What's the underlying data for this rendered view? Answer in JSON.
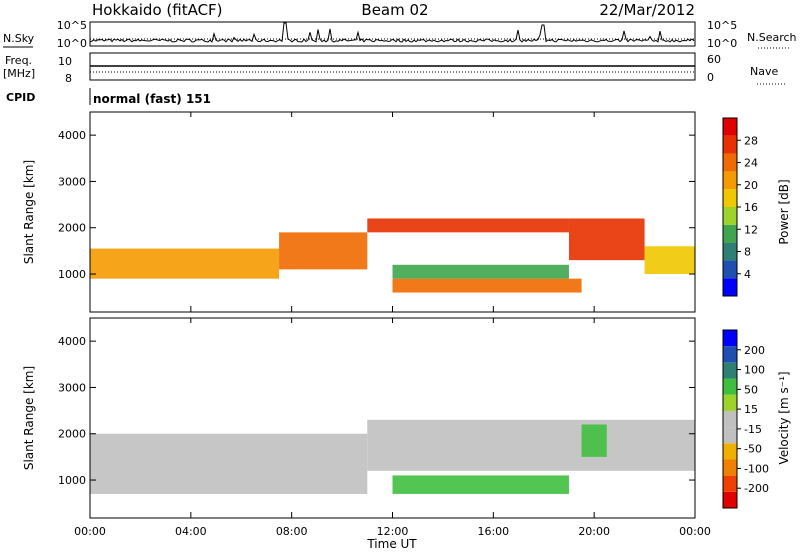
{
  "header": {
    "station": "Hokkaido (fitACF)",
    "beam": "Beam 02",
    "date": "22/Mar/2012"
  },
  "strips": {
    "nsky_label": "N.Sky",
    "nsky_ticks": [
      "10^5",
      "10^0"
    ],
    "nsearch_label": "N.Search",
    "nsearch_ticks": [
      "10^5",
      "10^0"
    ],
    "freq_label_1": "Freq.",
    "freq_label_2": "[MHz]",
    "freq_ticks": [
      "10",
      "8"
    ],
    "nave_label": "Nave",
    "nave_ticks": [
      "60",
      "0"
    ],
    "cpid_label": "CPID",
    "cpid_text": "normal (fast) 151"
  },
  "colors": {
    "power_scale": [
      "#0000ff",
      "#1f4fb0",
      "#2f7f73",
      "#3fa64f",
      "#9cd42a",
      "#f0c800",
      "#f59a00",
      "#f06a00",
      "#e83000",
      "#e00000"
    ],
    "velocity_scale": [
      "#0000ff",
      "#1f4fb0",
      "#2f7f73",
      "#3fbf3f",
      "#9cd42a",
      "#c0c0c0",
      "#c0c0c0",
      "#f0b000",
      "#f08000",
      "#f04000",
      "#e00000"
    ],
    "ground_scatter": "#c0c0c0"
  },
  "chart_data": [
    {
      "type": "heatmap",
      "name": "power",
      "ylabel": "Slant Range [km]",
      "ylim": [
        180,
        4500
      ],
      "yticks": [
        "1000",
        "2000",
        "3000",
        "4000"
      ],
      "colorbar_label": "Power [dB]",
      "colorbar_ticks": [
        "4",
        "8",
        "12",
        "16",
        "20",
        "24",
        "28"
      ],
      "bands": [
        {
          "t0": 0,
          "t1": 7.5,
          "r0": 900,
          "r1": 1550,
          "value_db": 18
        },
        {
          "t0": 7.5,
          "t1": 11,
          "r0": 1100,
          "r1": 1900,
          "value_db": 22
        },
        {
          "t0": 11,
          "t1": 19,
          "r0": 1900,
          "r1": 2200,
          "value_db": 24
        },
        {
          "t0": 12,
          "t1": 19.5,
          "r0": 600,
          "r1": 900,
          "value_db": 22
        },
        {
          "t0": 12,
          "t1": 19,
          "r0": 900,
          "r1": 1200,
          "value_db": 10
        },
        {
          "t0": 19,
          "t1": 22,
          "r0": 1300,
          "r1": 2200,
          "value_db": 24
        },
        {
          "t0": 22,
          "t1": 24,
          "r0": 1000,
          "r1": 1600,
          "value_db": 16
        }
      ]
    },
    {
      "type": "heatmap",
      "name": "velocity",
      "ylabel": "Slant Range [km]",
      "xlabel": "Time UT",
      "ylim": [
        180,
        4500
      ],
      "yticks": [
        "1000",
        "2000",
        "3000",
        "4000"
      ],
      "xticks": [
        "00:00",
        "04:00",
        "08:00",
        "12:00",
        "16:00",
        "20:00",
        "00:00"
      ],
      "colorbar_label": "Velocity [m s⁻¹]",
      "colorbar_ticks": [
        "200",
        "100",
        "50",
        "15",
        "-15",
        "-50",
        "-100",
        "-200"
      ],
      "bands": [
        {
          "t0": 0,
          "t1": 11,
          "r0": 700,
          "r1": 2000,
          "value": "ground scatter"
        },
        {
          "t0": 11,
          "t1": 24,
          "r0": 1200,
          "r1": 2300,
          "value": "ground scatter"
        },
        {
          "t0": 12,
          "t1": 19,
          "r0": 700,
          "r1": 1100,
          "value_ms": 30
        },
        {
          "t0": 19.5,
          "t1": 20.5,
          "r0": 1500,
          "r1": 2200,
          "value_ms": 40
        }
      ]
    }
  ]
}
